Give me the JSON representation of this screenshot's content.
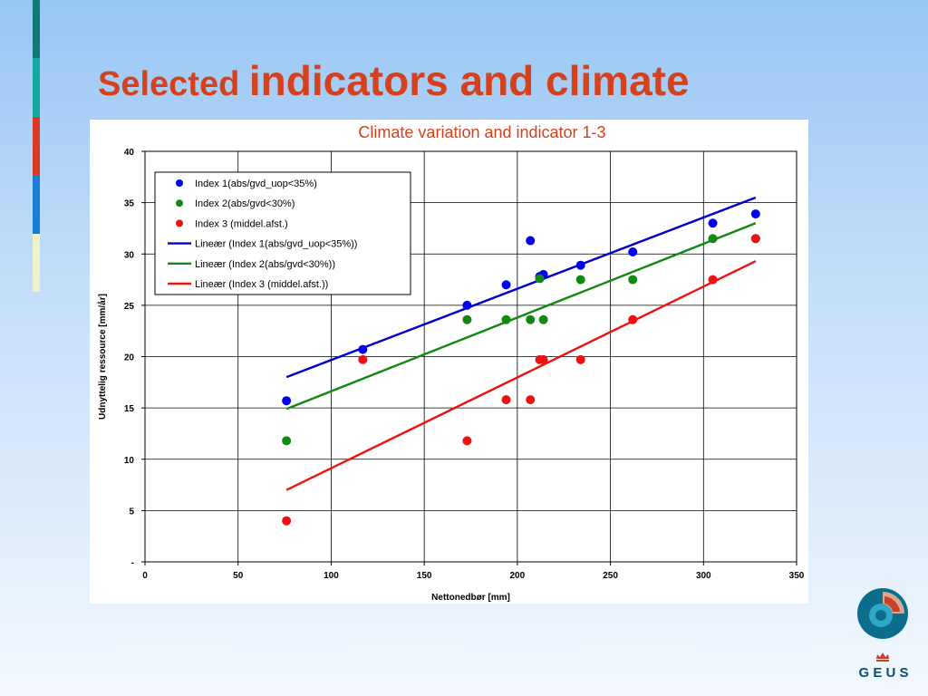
{
  "slide": {
    "title_part1": "Selected ",
    "title_part2": "indicators and climate"
  },
  "accent_bar_colors": [
    "#0f7a78",
    "#13a89e",
    "#d93a22",
    "#1a7fd4",
    "#eef2c8"
  ],
  "chart_data": {
    "type": "scatter",
    "title": "Climate variation and indicator 1-3",
    "xlabel": "Nettonedbør [mm]",
    "ylabel": "Udnyttelig ressource [mm/år]",
    "xlim": [
      0,
      350
    ],
    "ylim": [
      0,
      40
    ],
    "x_ticks": [
      "0",
      "50",
      "100",
      "150",
      "200",
      "250",
      "300",
      "350"
    ],
    "y_ticks": [
      "-",
      "5",
      "10",
      "15",
      "20",
      "25",
      "30",
      "35",
      "40"
    ],
    "grid": true,
    "legend_position": "top-left",
    "series": [
      {
        "name": "Index 1(abs/gvd_uop<35%)",
        "color": "#0000ee",
        "points": [
          [
            76,
            15.7
          ],
          [
            117,
            20.7
          ],
          [
            173,
            25.0
          ],
          [
            194,
            27.0
          ],
          [
            207,
            31.3
          ],
          [
            212,
            27.8
          ],
          [
            214,
            28.0
          ],
          [
            234,
            28.9
          ],
          [
            262,
            30.2
          ],
          [
            305,
            33.0
          ],
          [
            328,
            33.9
          ]
        ]
      },
      {
        "name": "Index 2(abs/gvd<30%)",
        "color": "#118811",
        "points": [
          [
            76,
            11.8
          ],
          [
            173,
            23.6
          ],
          [
            194,
            23.6
          ],
          [
            207,
            23.6
          ],
          [
            212,
            27.6
          ],
          [
            214,
            23.6
          ],
          [
            234,
            27.5
          ],
          [
            262,
            27.5
          ],
          [
            305,
            31.5
          ],
          [
            328,
            31.5
          ]
        ]
      },
      {
        "name": "Index 3 (middel.afst.)",
        "color": "#ee1111",
        "points": [
          [
            76,
            4.0
          ],
          [
            117,
            19.7
          ],
          [
            173,
            11.8
          ],
          [
            194,
            15.8
          ],
          [
            207,
            15.8
          ],
          [
            212,
            19.7
          ],
          [
            214,
            19.7
          ],
          [
            234,
            19.7
          ],
          [
            262,
            23.6
          ],
          [
            305,
            27.5
          ],
          [
            328,
            31.5
          ]
        ]
      }
    ],
    "trendlines": [
      {
        "name": "Lineær (Index 1(abs/gvd_uop<35%))",
        "color": "#0000cc",
        "x": [
          76,
          328
        ],
        "y": [
          18.0,
          35.5
        ]
      },
      {
        "name": "Lineær (Index 2(abs/gvd<30%))",
        "color": "#118811",
        "x": [
          76,
          328
        ],
        "y": [
          14.9,
          33.0
        ]
      },
      {
        "name": "Lineær (Index 3 (middel.afst.))",
        "color": "#ee1111",
        "x": [
          76,
          328
        ],
        "y": [
          7.0,
          29.3
        ]
      }
    ]
  },
  "logo": {
    "text": "G E U S"
  }
}
